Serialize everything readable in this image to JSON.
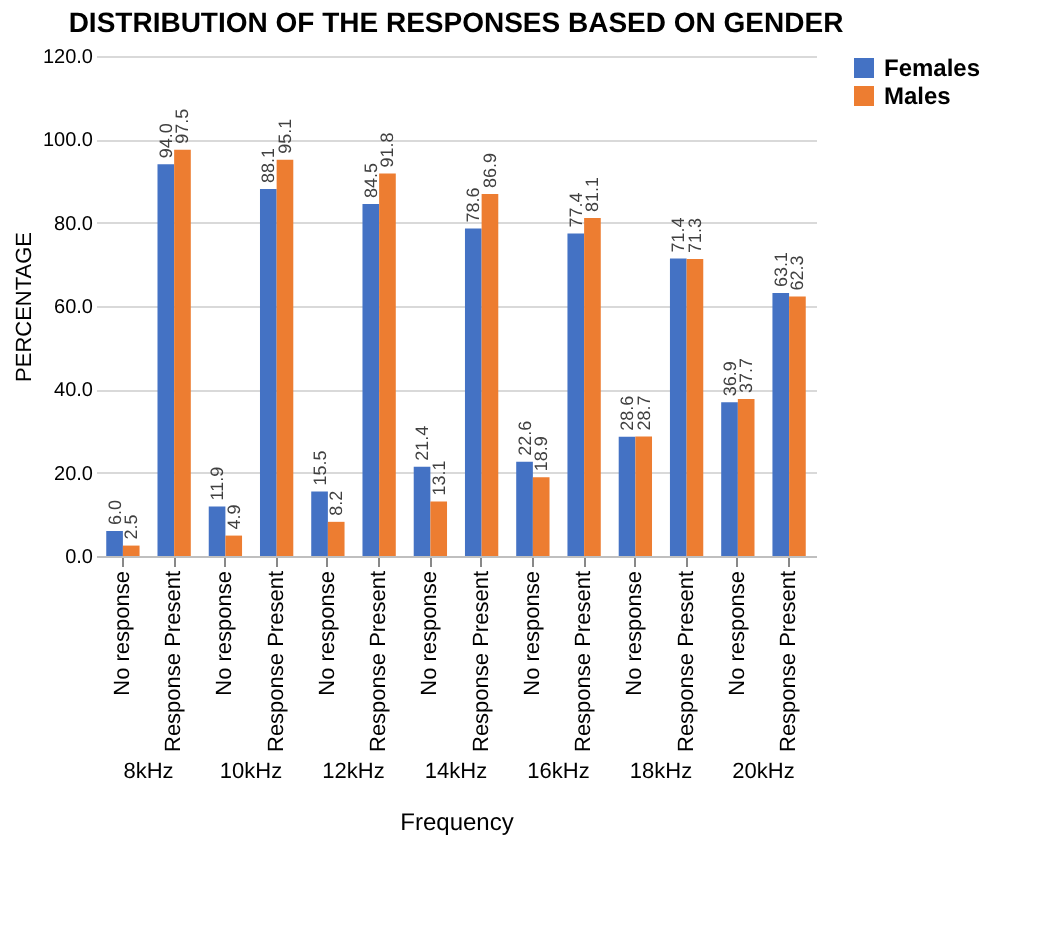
{
  "chart_data": {
    "type": "bar",
    "title": "DISTRIBUTION OF THE RESPONSES BASED ON GENDER",
    "xlabel": "Frequency",
    "ylabel": "PERCENTAGE",
    "categories": [
      "No response",
      "Response Present",
      "No response",
      "Response Present",
      "No response",
      "Response Present",
      "No response",
      "Response Present",
      "No response",
      "Response Present",
      "No response",
      "Response Present",
      "No response",
      "Response Present"
    ],
    "series": [
      {
        "name": "Females",
        "color": "#4472c4",
        "values": [
          6.0,
          94.0,
          11.9,
          88.1,
          15.5,
          84.5,
          21.4,
          78.6,
          22.6,
          77.4,
          28.6,
          71.4,
          36.9,
          63.1
        ],
        "value_labels": [
          "6.0",
          "94.0",
          "11.9",
          "88.1",
          "15.5",
          "84.5",
          "21.4",
          "78.6",
          "22.6",
          "77.4",
          "28.6",
          "71.4",
          "36.9",
          "63.1"
        ]
      },
      {
        "name": "Males",
        "color": "#ed7d31",
        "values": [
          2.5,
          97.5,
          4.9,
          95.1,
          8.2,
          91.8,
          13.1,
          86.9,
          18.9,
          81.1,
          28.7,
          71.3,
          37.7,
          62.3
        ],
        "value_labels": [
          "2.5",
          "97.5",
          "4.9",
          "95.1",
          "8.2",
          "91.8",
          "13.1",
          "86.9",
          "18.9",
          "81.1",
          "28.7",
          "71.3",
          "37.7",
          "62.3"
        ]
      }
    ],
    "annotations": [
      "8kHz",
      "10kHz",
      "12kHz",
      "14kHz",
      "16kHz",
      "18kHz",
      "20kHz"
    ],
    "ylim": [
      0,
      120
    ],
    "yticks": [
      {
        "value": 0,
        "label": "0.0"
      },
      {
        "value": 20,
        "label": "20.0"
      },
      {
        "value": 40,
        "label": "40.0"
      },
      {
        "value": 60,
        "label": "60.0"
      },
      {
        "value": 80,
        "label": "80.0"
      },
      {
        "value": 100,
        "label": "100.0"
      },
      {
        "value": 120,
        "label": "120.0"
      }
    ],
    "grid": "y",
    "legend": "right"
  }
}
